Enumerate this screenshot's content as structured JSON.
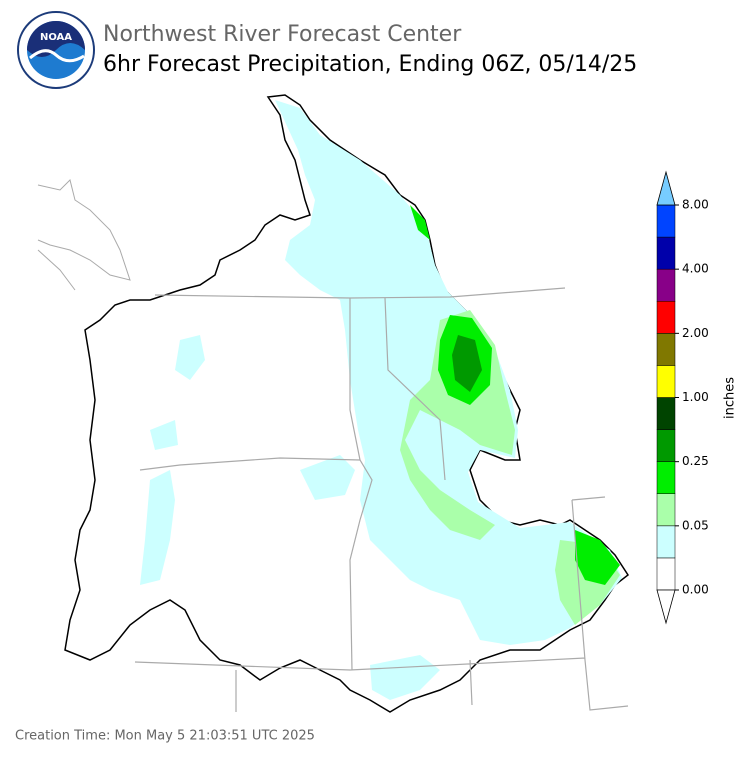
{
  "header": {
    "logo": "NOAA",
    "title": "Northwest River Forecast Center",
    "subtitle": "6hr Forecast Precipitation, Ending 06Z, 05/14/25"
  },
  "legend": {
    "label": "inches",
    "colors": [
      "#ffffff",
      "#ccffff",
      "#aaffaa",
      "#00ee00",
      "#009900",
      "#004400",
      "#ffff00",
      "#807800",
      "#ff0000",
      "#880088",
      "#0000aa",
      "#0044ff"
    ],
    "over_color": "#77ccff",
    "ticks": [
      {
        "value": 0,
        "label": "0.00"
      },
      {
        "value": 0.05,
        "label": "0.05"
      },
      {
        "value": 0.25,
        "label": "0.25"
      },
      {
        "value": 1,
        "label": "1.00"
      },
      {
        "value": 2,
        "label": "2.00"
      },
      {
        "value": 4,
        "label": "4.00"
      },
      {
        "value": 8,
        "label": "8.00"
      }
    ]
  },
  "footer": {
    "creation_time": "Creation Time: Mon May 5 21:03:51 UTC 2025"
  }
}
